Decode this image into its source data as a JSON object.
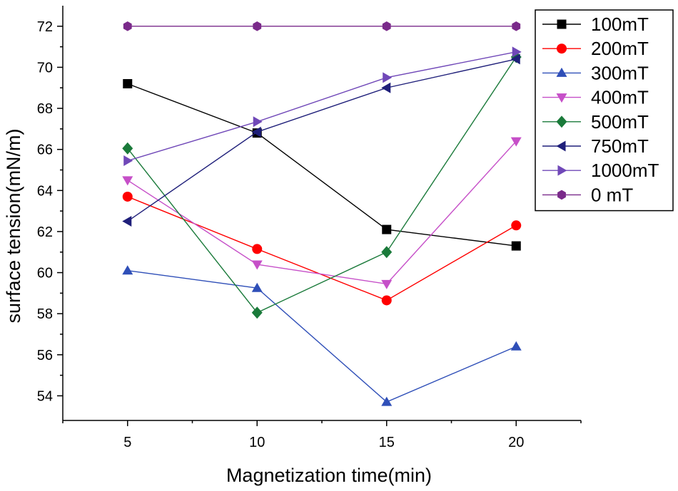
{
  "chart_data": {
    "type": "line",
    "title": "",
    "xlabel": "Magnetization time(min)",
    "ylabel": "surface tension(mN/m)",
    "x": [
      5,
      10,
      15,
      20
    ],
    "xlim": [
      2.5,
      22.5
    ],
    "ylim": [
      52.8,
      73
    ],
    "xticks": [
      5,
      10,
      15,
      20
    ],
    "yticks": [
      54,
      56,
      58,
      60,
      62,
      64,
      66,
      68,
      70,
      72
    ],
    "grid": false,
    "legend_position": "top-right",
    "series": [
      {
        "name": "100mT",
        "values": [
          69.2,
          66.8,
          62.1,
          61.3
        ],
        "color": "#000000",
        "marker": "square"
      },
      {
        "name": "200mT",
        "values": [
          63.7,
          61.15,
          58.65,
          62.3
        ],
        "color": "#ff0000",
        "marker": "circle"
      },
      {
        "name": "300mT",
        "values": [
          60.1,
          59.25,
          53.7,
          56.4
        ],
        "color": "#2f4fb8",
        "marker": "triangle-up"
      },
      {
        "name": "400mT",
        "values": [
          64.5,
          60.4,
          59.45,
          66.4
        ],
        "color": "#c64fc8",
        "marker": "triangle-down"
      },
      {
        "name": "500mT",
        "values": [
          66.05,
          58.05,
          61.0,
          70.5
        ],
        "color": "#1a7a3a",
        "marker": "diamond"
      },
      {
        "name": "750mT",
        "values": [
          62.5,
          66.85,
          69.0,
          70.4
        ],
        "color": "#1f1f7a",
        "marker": "triangle-left"
      },
      {
        "name": "1000mT",
        "values": [
          65.45,
          67.35,
          69.5,
          70.75
        ],
        "color": "#7048b8",
        "marker": "triangle-right"
      },
      {
        "name": "0 mT",
        "values": [
          72,
          72,
          72,
          72
        ],
        "color": "#7a2a8a",
        "marker": "hexagon"
      }
    ]
  }
}
